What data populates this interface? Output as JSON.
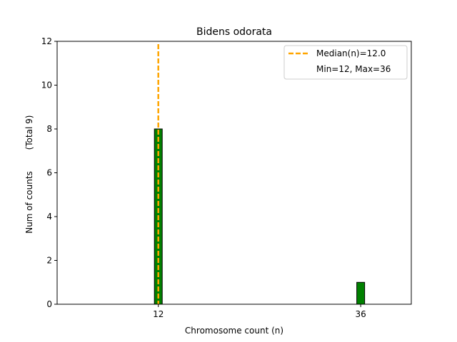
{
  "chart_data": {
    "type": "bar",
    "title": "Bidens odorata",
    "xlabel": "Chromosome count (n)",
    "ylabel": "Num of counts",
    "ylabel_total": "(Total 9)",
    "categories": [
      12,
      36
    ],
    "values": [
      8,
      1
    ],
    "bar_color": "#008000",
    "bar_edge_color": "#000000",
    "xlim": [
      0,
      42
    ],
    "ylim": [
      0,
      12
    ],
    "yticks": [
      0,
      2,
      4,
      6,
      8,
      10,
      12
    ],
    "xticks": [
      12,
      36
    ],
    "median": 12.0,
    "median_color": "#FFA500",
    "grid": false,
    "legend": {
      "placement": "top-right",
      "entries": [
        {
          "label": "Median(n)=12.0",
          "style": "dashed-line",
          "color": "#FFA500"
        },
        {
          "label": "Min=12, Max=36",
          "style": "none"
        }
      ]
    }
  }
}
